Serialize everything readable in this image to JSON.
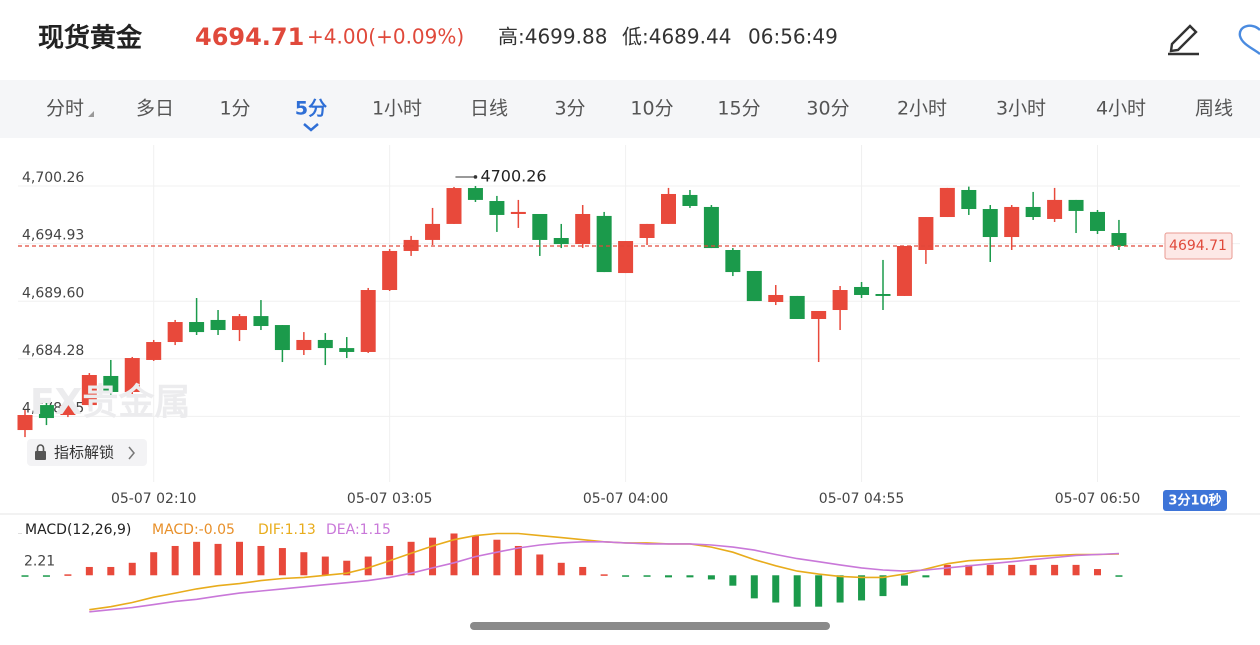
{
  "header": {
    "title": "现货黄金",
    "price": "4694.71",
    "change": "+4.00(+0.09%)",
    "high": "高:4699.88",
    "low": "低:4689.44",
    "time": "06:56:49"
  },
  "tabs": {
    "items": [
      "分时",
      "多日",
      "1分",
      "5分",
      "1小时",
      "日线",
      "3分",
      "10分",
      "15分",
      "30分",
      "2小时",
      "3小时",
      "4小时",
      "周线"
    ],
    "active": 3
  },
  "watermark": "FX贵金属",
  "unlock_button": "指标解锁",
  "countdown": "3分10秒",
  "chart_data": [
    {
      "type": "candlestick",
      "up_color": "#e8493b",
      "down_color": "#1b9a4b",
      "grid": true,
      "x": [
        null,
        null,
        null,
        null,
        null,
        null,
        "05-07 02:10",
        null,
        null,
        null,
        null,
        null,
        null,
        null,
        null,
        null,
        null,
        "05-07 03:05",
        null,
        null,
        null,
        null,
        null,
        null,
        null,
        null,
        null,
        null,
        "05-07 04:00",
        null,
        null,
        null,
        null,
        null,
        null,
        null,
        null,
        null,
        null,
        "05-07 04:55",
        null,
        null,
        null,
        null,
        null,
        null,
        null,
        null,
        null,
        null,
        "05-07 06:50",
        null
      ],
      "open": [
        4677.69,
        4680.0,
        4679.08,
        4680.0,
        4682.69,
        4681.21,
        4684.17,
        4685.83,
        4687.68,
        4687.87,
        4686.94,
        4688.23,
        4687.4,
        4685.09,
        4686.02,
        4685.27,
        4684.91,
        4690.64,
        4694.25,
        4695.27,
        4696.75,
        4700.07,
        4698.87,
        4697.67,
        4697.67,
        4695.45,
        4694.89,
        4697.49,
        4692.21,
        4695.45,
        4696.75,
        4699.43,
        4698.32,
        4694.34,
        4692.4,
        4689.53,
        4690.09,
        4687.96,
        4688.79,
        4690.92,
        4690.27,
        4690.09,
        4694.34,
        4697.39,
        4699.89,
        4698.13,
        4695.54,
        4698.32,
        4697.21,
        4698.97,
        4697.86,
        4695.91
      ],
      "high": [
        4679.54,
        4680.47,
        4680.19,
        4682.96,
        4684.17,
        4684.45,
        4686.02,
        4687.87,
        4689.9,
        4688.79,
        4688.42,
        4689.71,
        4687.4,
        4686.75,
        4686.66,
        4686.29,
        4690.83,
        4694.43,
        4695.64,
        4698.23,
        4700.17,
        4700.26,
        4699.34,
        4698.97,
        4697.67,
        4696.75,
        4698.5,
        4697.86,
        4695.17,
        4696.75,
        4700.08,
        4699.89,
        4698.5,
        4694.52,
        4692.4,
        4691.1,
        4690.09,
        4688.7,
        4691.01,
        4691.38,
        4693.42,
        4694.71,
        4697.39,
        4700.08,
        4700.2,
        4698.5,
        4698.5,
        4699.71,
        4700.08,
        4698.97,
        4698.04,
        4697.12
      ],
      "low": [
        4677.04,
        4678.15,
        4678.89,
        4679.82,
        4680.93,
        4681.02,
        4684.08,
        4685.55,
        4686.48,
        4686.48,
        4685.92,
        4686.94,
        4683.98,
        4684.63,
        4683.7,
        4684.35,
        4684.82,
        4690.55,
        4693.79,
        4694.8,
        4696.75,
        4698.78,
        4696.01,
        4696.38,
        4693.79,
        4694.52,
        4694.52,
        4692.3,
        4692.21,
        4694.8,
        4696.75,
        4698.23,
        4694.52,
        4691.93,
        4689.62,
        4689.25,
        4687.96,
        4683.98,
        4686.94,
        4689.9,
        4688.79,
        4690.09,
        4693.05,
        4697.39,
        4697.58,
        4693.23,
        4694.34,
        4697.12,
        4696.93,
        4695.91,
        4695.82,
        4694.34
      ],
      "close": [
        4679.08,
        4678.8,
        4680.0,
        4682.78,
        4681.21,
        4684.35,
        4685.83,
        4687.68,
        4686.75,
        4686.94,
        4688.23,
        4687.31,
        4685.09,
        4686.02,
        4685.27,
        4684.91,
        4690.64,
        4694.25,
        4695.27,
        4696.75,
        4700.07,
        4698.97,
        4697.58,
        4697.86,
        4695.27,
        4694.89,
        4697.67,
        4692.3,
        4695.17,
        4696.75,
        4699.52,
        4698.41,
        4694.52,
        4692.3,
        4689.62,
        4690.18,
        4687.96,
        4688.7,
        4690.64,
        4690.18,
        4690.09,
        4694.71,
        4697.39,
        4700.08,
        4698.13,
        4695.54,
        4698.32,
        4697.39,
        4698.97,
        4697.95,
        4696.1,
        4694.71
      ],
      "ylim": [
        4673.07,
        4704.05
      ],
      "yticks": [
        {
          "value": 4700.26,
          "label": "4,700.26"
        },
        {
          "value": 4694.93,
          "label": "4,694.93"
        },
        {
          "value": 4689.6,
          "label": "4,689.60"
        },
        {
          "value": 4684.28,
          "label": "4,684.28"
        },
        {
          "value": 4678.95,
          "label": "4,678.95"
        }
      ],
      "max_annotation": 4700.26,
      "last_price": 4694.71
    },
    {
      "type": "macd",
      "title": "MACD(12,26,9)",
      "up_color": "#e8493b",
      "down_color": "#1b9a4b",
      "ylim": [
        -2.1,
        2.5
      ],
      "yticks": [
        2.21
      ],
      "series": [
        {
          "name": "MACD:-0.05",
          "color": "#e8902a",
          "kind": "bar",
          "values": [
            -0.05,
            -0.05,
            0.05,
            0.44,
            0.44,
            0.66,
            1.22,
            1.55,
            1.77,
            1.66,
            1.77,
            1.55,
            1.44,
            1.22,
            0.99,
            0.77,
            0.99,
            1.55,
            1.77,
            1.99,
            2.21,
            2.1,
            1.88,
            1.55,
            1.1,
            0.66,
            0.44,
            0.05,
            -0.05,
            -0.05,
            -0.11,
            -0.11,
            -0.22,
            -0.55,
            -1.22,
            -1.44,
            -1.66,
            -1.66,
            -1.44,
            -1.33,
            -1.1,
            -0.55,
            -0.11,
            0.55,
            0.55,
            0.55,
            0.55,
            0.55,
            0.55,
            0.55,
            0.33,
            -0.05
          ]
        },
        {
          "name": "DIF:1.13",
          "color": "#e8ac1c",
          "kind": "line",
          "values": [
            null,
            null,
            null,
            -1.82,
            -1.66,
            -1.44,
            -1.16,
            -0.94,
            -0.72,
            -0.55,
            -0.44,
            -0.28,
            -0.17,
            -0.11,
            0,
            0.11,
            0.39,
            0.77,
            1.16,
            1.55,
            1.88,
            2.1,
            2.21,
            2.21,
            2.1,
            1.99,
            1.88,
            1.77,
            1.71,
            1.71,
            1.66,
            1.66,
            1.49,
            1.22,
            0.83,
            0.5,
            0.22,
            0.06,
            -0.06,
            -0.11,
            -0.11,
            0.06,
            0.33,
            0.61,
            0.77,
            0.83,
            0.88,
            0.99,
            1.05,
            1.1,
            1.1,
            1.13
          ]
        },
        {
          "name": "DEA:1.15",
          "color": "#c978d9",
          "kind": "line",
          "values": [
            null,
            null,
            null,
            -1.93,
            -1.82,
            -1.71,
            -1.55,
            -1.38,
            -1.27,
            -1.1,
            -0.94,
            -0.83,
            -0.72,
            -0.61,
            -0.5,
            -0.39,
            -0.28,
            -0.11,
            0.11,
            0.39,
            0.66,
            0.99,
            1.22,
            1.44,
            1.6,
            1.71,
            1.77,
            1.77,
            1.71,
            1.66,
            1.66,
            1.66,
            1.6,
            1.49,
            1.33,
            1.1,
            0.88,
            0.72,
            0.55,
            0.39,
            0.28,
            0.22,
            0.28,
            0.39,
            0.5,
            0.61,
            0.72,
            0.83,
            0.94,
            1.05,
            1.1,
            1.15
          ]
        }
      ]
    }
  ]
}
